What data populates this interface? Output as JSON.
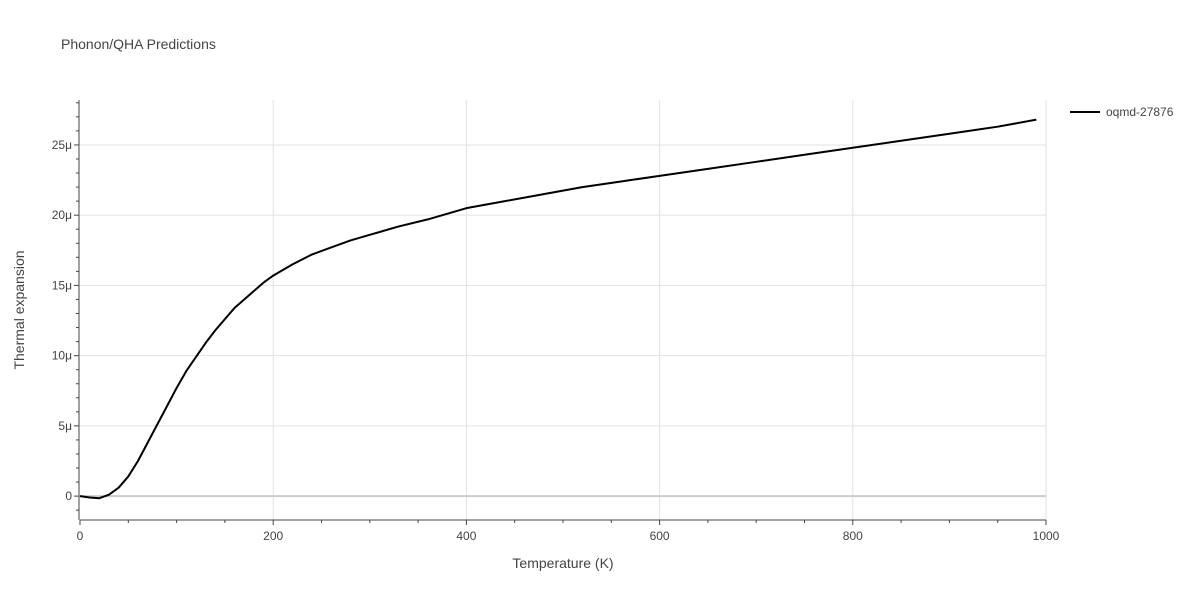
{
  "chart_data": {
    "type": "line",
    "title": "Phonon/QHA Predictions",
    "xlabel": "Temperature (K)",
    "ylabel": "Thermal expansion",
    "xlim": [
      0,
      1000
    ],
    "ylim": [
      -1.7e-06,
      2.82e-05
    ],
    "x_ticks": [
      {
        "value": 0,
        "label": "0"
      },
      {
        "value": 200,
        "label": "200"
      },
      {
        "value": 400,
        "label": "400"
      },
      {
        "value": 600,
        "label": "600"
      },
      {
        "value": 800,
        "label": "800"
      },
      {
        "value": 1000,
        "label": "1000"
      }
    ],
    "y_ticks": [
      {
        "value": 0,
        "label": "0"
      },
      {
        "value": 5e-06,
        "label": "5μ"
      },
      {
        "value": 1e-05,
        "label": "10μ"
      },
      {
        "value": 1.5e-05,
        "label": "15μ"
      },
      {
        "value": 2e-05,
        "label": "20μ"
      },
      {
        "value": 2.5e-05,
        "label": "25μ"
      }
    ],
    "grid": true,
    "legend_position": "top-right",
    "series": [
      {
        "name": "oqmd-27876",
        "color": "#000000",
        "x": [
          0,
          10,
          20,
          30,
          40,
          50,
          60,
          70,
          80,
          90,
          100,
          110,
          120,
          130,
          140,
          150,
          160,
          170,
          180,
          190,
          200,
          220,
          240,
          260,
          280,
          300,
          330,
          360,
          400,
          440,
          480,
          520,
          560,
          600,
          650,
          700,
          750,
          800,
          850,
          900,
          950,
          990
        ],
        "y": [
          0,
          -1e-07,
          -1.5e-07,
          1e-07,
          6e-07,
          1.4e-06,
          2.5e-06,
          3.8e-06,
          5.1e-06,
          6.4e-06,
          7.7e-06,
          8.9e-06,
          9.9e-06,
          1.09e-05,
          1.18e-05,
          1.26e-05,
          1.34e-05,
          1.4e-05,
          1.46e-05,
          1.52e-05,
          1.57e-05,
          1.65e-05,
          1.72e-05,
          1.77e-05,
          1.82e-05,
          1.86e-05,
          1.92e-05,
          1.97e-05,
          2.05e-05,
          2.1e-05,
          2.15e-05,
          2.2e-05,
          2.24e-05,
          2.28e-05,
          2.33e-05,
          2.38e-05,
          2.43e-05,
          2.48e-05,
          2.53e-05,
          2.58e-05,
          2.63e-05,
          2.68e-05
        ]
      }
    ]
  }
}
